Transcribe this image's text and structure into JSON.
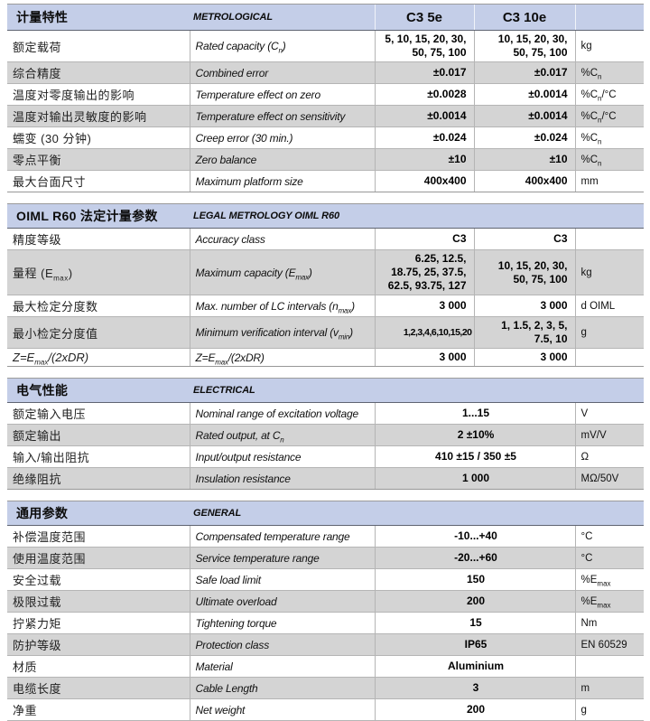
{
  "colors": {
    "band_blue": "#c4cee8",
    "row_alt_gray": "#d4d4d4",
    "row_line": "#b5b5b5",
    "band_border_dark": "#5f6472"
  },
  "sections": [
    {
      "id": "metrological",
      "title_zh": "计量特性",
      "title_en": "METROLOGICAL",
      "col_headers": [
        "C3 5e",
        "C3 10e"
      ],
      "rows": [
        {
          "zh": "额定载荷",
          "en": "Rated capacity (C<sub>n</sub>)",
          "v1": "5, 10, 15, 20, 30,\n50, 75, 100",
          "v2": "10, 15, 20, 30,\n50, 75, 100",
          "unit": "kg"
        },
        {
          "zh": "综合精度",
          "en": "Combined error",
          "v1": "±0.017",
          "v2": "±0.017",
          "unit": "%C<sub>n</sub>"
        },
        {
          "zh": "温度对零度输出的影响",
          "en": "Temperature effect on zero",
          "v1": "±0.0028",
          "v2": "±0.0014",
          "unit": "%C<sub>n</sub>/°C"
        },
        {
          "zh": "温度对输出灵敏度的影响",
          "en": "Temperature effect on sensitivity",
          "v1": "±0.0014",
          "v2": "±0.0014",
          "unit": "%C<sub>n</sub>/°C"
        },
        {
          "zh": "蠕变 (30 分钟)",
          "en": "Creep error (30 min.)",
          "v1": "±0.024",
          "v2": "±0.024",
          "unit": "%C<sub>n</sub>"
        },
        {
          "zh": "零点平衡",
          "en": "Zero balance",
          "v1": "±10",
          "v2": "±10",
          "unit": "%C<sub>n</sub>"
        },
        {
          "zh": "最大台面尺寸",
          "en": "Maximum platform size",
          "v1": "400x400",
          "v2": "400x400",
          "unit": "mm"
        }
      ]
    },
    {
      "id": "oiml",
      "title_zh": "OIML R60 法定计量参数",
      "title_en": "LEGAL METROLOGY OIML R60",
      "rows": [
        {
          "zh": "精度等级",
          "en": "Accuracy class",
          "v1": "C3",
          "v2": "C3",
          "unit": ""
        },
        {
          "zh": "量程 (E<sub>max</sub>)",
          "en": "Maximum capacity (E<sub>max</sub>)",
          "v1": "6.25, 12.5,\n18.75, 25, 37.5,\n62.5, 93.75, 127",
          "v2": "10, 15, 20, 30,\n50, 75, 100",
          "unit": "kg"
        },
        {
          "zh": "最大检定分度数",
          "en": "Max. number of LC intervals (n<sub>max</sub>)",
          "v1": "3 000",
          "v2": "3 000",
          "unit": "d OIML"
        },
        {
          "zh": "最小检定分度值",
          "en": "Minimum verification interval (v<sub>min</sub>)",
          "v1": "1,2,3,4,6,10,15,20",
          "v1_small": true,
          "v2": "1, 1.5, 2, 3, 5,\n7.5, 10",
          "unit": "g"
        },
        {
          "zh": "Z=E<sub>max</sub>/(2xDR)",
          "zh_italic": true,
          "en": "Z=E<sub>max</sub>/(2xDR)",
          "v1": "3 000",
          "v2": "3 000",
          "unit": ""
        }
      ]
    },
    {
      "id": "electrical",
      "title_zh": "电气性能",
      "title_en": "ELECTRICAL",
      "rows": [
        {
          "zh": "额定输入电压",
          "en": "Nominal range of excitation voltage",
          "value": "1...15",
          "unit": "V"
        },
        {
          "zh": "额定输出",
          "en": "Rated output, at C<sub>n</sub>",
          "value": "2 ±10%",
          "unit": "mV/V"
        },
        {
          "zh": "输入/输出阻抗",
          "en": "Input/output resistance",
          "value": "410 ±15 / 350 ±5",
          "unit": "Ω"
        },
        {
          "zh": "绝缘阻抗",
          "en": "Insulation resistance",
          "value": "1 000",
          "unit": "MΩ/50V"
        }
      ]
    },
    {
      "id": "general",
      "title_zh": "通用参数",
      "title_en": "GENERAL",
      "rows": [
        {
          "zh": "补偿温度范围",
          "en": "Compensated temperature range",
          "value": "-10...+40",
          "unit": "°C"
        },
        {
          "zh": "使用温度范围",
          "en": "Service temperature range",
          "value": "-20...+60",
          "unit": "°C"
        },
        {
          "zh": "安全过载",
          "en": "Safe load limit",
          "value": "150",
          "unit": "%E<sub>max</sub>"
        },
        {
          "zh": "极限过载",
          "en": "Ultimate overload",
          "value": "200",
          "unit": "%E<sub>max</sub>"
        },
        {
          "zh": "拧紧力矩",
          "en": "Tightening torque",
          "value": "15",
          "unit": "Nm"
        },
        {
          "zh": "防护等级",
          "en": "Protection class",
          "value": "IP65",
          "unit": "EN 60529"
        },
        {
          "zh": "材质",
          "en": "Material",
          "value": "Aluminium",
          "unit": ""
        },
        {
          "zh": "电缆长度",
          "en": "Cable Length",
          "value": "3",
          "unit": "m"
        },
        {
          "zh": "净重",
          "en": "Net weight",
          "value": "200",
          "unit": "g"
        }
      ]
    }
  ]
}
